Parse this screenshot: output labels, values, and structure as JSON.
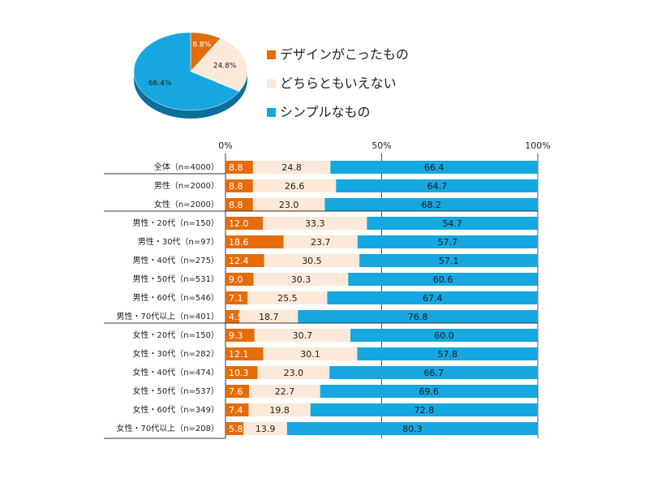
{
  "chart_data": [
    {
      "type": "pie",
      "categories": [
        "デザインがこったもの",
        "どちらともいえない",
        "シンプルなもの"
      ],
      "values": [
        8.8,
        24.8,
        66.4
      ],
      "value_labels": [
        "8.8%",
        "24.8%",
        "66.4%"
      ],
      "colors": [
        "#e46c0a",
        "#fde9d9",
        "#16a7e0"
      ]
    },
    {
      "type": "stacked-bar-horizontal",
      "categories": [
        "全体（n=4000）",
        "男性（n=2000）",
        "女性（n=2000）",
        "男性・20代（n=150）",
        "男性・30代（n=97）",
        "男性・40代（n=275）",
        "男性・50代（n=531）",
        "男性・60代（n=546）",
        "男性・70代以上（n=401）",
        "女性・20代（n=150）",
        "女性・30代（n=282）",
        "女性・40代（n=474）",
        "女性・50代（n=537）",
        "女性・60代（n=349）",
        "女性・70代以上（n=208）"
      ],
      "series": [
        {
          "color": "#e46c0a",
          "values": [
            8.8,
            8.8,
            8.8,
            12.0,
            18.6,
            12.4,
            9.0,
            7.1,
            4.5,
            9.3,
            12.1,
            10.3,
            7.6,
            7.4,
            5.8
          ],
          "value_labels": [
            "8.8",
            "8.8",
            "8.8",
            "12.0",
            "18.6",
            "12.4",
            "9.0",
            "7.1",
            "4.5",
            "9.3",
            "12.1",
            "10.3",
            "7.6",
            "7.4",
            "5.8"
          ]
        },
        {
          "color": "#fde9d9",
          "values": [
            24.8,
            26.6,
            23.0,
            33.3,
            23.7,
            30.5,
            30.3,
            25.5,
            18.7,
            30.7,
            30.1,
            23.0,
            22.7,
            19.8,
            13.9
          ],
          "value_labels": [
            "24.8",
            "26.6",
            "23.0",
            "33.3",
            "23.7",
            "30.5",
            "30.3",
            "25.5",
            "18.7",
            "30.7",
            "30.1",
            "23.0",
            "22.7",
            "19.8",
            "13.9"
          ]
        },
        {
          "color": "#16a7e0",
          "values": [
            66.4,
            64.7,
            68.2,
            54.7,
            57.7,
            57.1,
            60.6,
            67.4,
            76.8,
            60.0,
            57.8,
            66.7,
            69.6,
            72.8,
            80.3
          ],
          "value_labels": [
            "66.4",
            "64.7",
            "68.2",
            "54.7",
            "57.7",
            "57.1",
            "60.6",
            "67.4",
            "76.8",
            "60.0",
            "57.8",
            "66.7",
            "69.6",
            "72.8",
            "80.3"
          ]
        }
      ],
      "xlim": [
        0,
        100
      ],
      "xticks": [
        {
          "value": 0,
          "label": "0%"
        },
        {
          "value": 50,
          "label": "50%"
        },
        {
          "value": 100,
          "label": "100%"
        }
      ],
      "grid": true
    }
  ]
}
